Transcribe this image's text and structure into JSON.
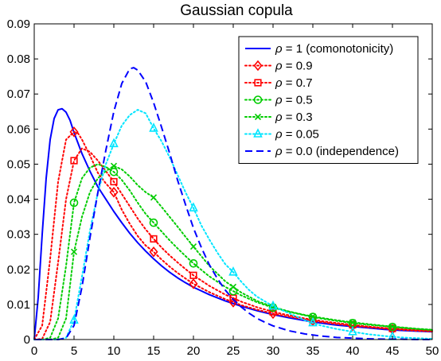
{
  "chart_data": {
    "type": "line",
    "title": "Gaussian copula",
    "xlabel": "",
    "ylabel": "",
    "xlim": [
      0,
      50
    ],
    "ylim": [
      0,
      0.09
    ],
    "xticks": [
      "0",
      "5",
      "10",
      "15",
      "20",
      "25",
      "30",
      "35",
      "40",
      "45",
      "50"
    ],
    "yticks": [
      "0",
      "0.01",
      "0.02",
      "0.03",
      "0.04",
      "0.05",
      "0.06",
      "0.07",
      "0.08",
      "0.09"
    ],
    "grid": false,
    "legend_position": "top-right",
    "series": [
      {
        "name": "= 1 (comonotonicity)",
        "rho_symbol": "ρ",
        "color": "#0000ff",
        "line_style": "solid",
        "marker": "none",
        "x": [
          0,
          0.5,
          1,
          1.5,
          2,
          2.5,
          3,
          3.5,
          4,
          4.5,
          5,
          6,
          7,
          8,
          9,
          10,
          11,
          12,
          13,
          14,
          15,
          16,
          17,
          18,
          19,
          20,
          22,
          24,
          26,
          28,
          30,
          32,
          34,
          36,
          38,
          40,
          42,
          44,
          46,
          48,
          50
        ],
        "y": [
          0,
          0.012,
          0.03,
          0.046,
          0.057,
          0.063,
          0.0655,
          0.0658,
          0.0648,
          0.0625,
          0.059,
          0.053,
          0.048,
          0.0435,
          0.04,
          0.0365,
          0.0333,
          0.0303,
          0.0276,
          0.0252,
          0.023,
          0.021,
          0.0192,
          0.0176,
          0.0162,
          0.0149,
          0.0128,
          0.011,
          0.0095,
          0.0082,
          0.0071,
          0.0062,
          0.0054,
          0.0047,
          0.0041,
          0.0037,
          0.0033,
          0.0029,
          0.0026,
          0.0024,
          0.0022
        ],
        "marker_x": []
      },
      {
        "name": "= 0.9",
        "rho_symbol": "ρ",
        "color": "#ff0000",
        "line_style": "dotted",
        "marker": "diamond",
        "x": [
          0,
          1,
          2,
          3,
          4,
          5,
          5.5,
          6,
          7,
          8,
          9,
          10,
          11,
          12,
          13,
          14,
          15,
          16,
          17,
          18,
          19,
          20,
          22,
          24,
          26,
          28,
          30,
          32,
          34,
          36,
          38,
          40,
          42,
          44,
          46,
          48,
          50
        ],
        "y": [
          0,
          0.004,
          0.023,
          0.045,
          0.057,
          0.0592,
          0.0588,
          0.057,
          0.0525,
          0.0475,
          0.0445,
          0.042,
          0.037,
          0.033,
          0.0295,
          0.0268,
          0.025,
          0.0228,
          0.0208,
          0.019,
          0.0174,
          0.0159,
          0.0135,
          0.0115,
          0.0098,
          0.0085,
          0.0074,
          0.0065,
          0.0057,
          0.005,
          0.0044,
          0.0039,
          0.0035,
          0.0031,
          0.0028,
          0.0025,
          0.0023
        ],
        "marker_x": [
          5,
          10,
          15,
          20,
          25,
          30,
          35,
          40,
          45
        ]
      },
      {
        "name": "= 0.7",
        "rho_symbol": "ρ",
        "color": "#ff0000",
        "line_style": "dotted",
        "marker": "square",
        "x": [
          0,
          1,
          2,
          3,
          4,
          5,
          6,
          7,
          8,
          9,
          10,
          11,
          12,
          13,
          14,
          15,
          16,
          17,
          18,
          19,
          20,
          22,
          24,
          26,
          28,
          30,
          32,
          34,
          36,
          38,
          40,
          42,
          44,
          46,
          48,
          50
        ],
        "y": [
          0,
          0.0002,
          0.005,
          0.022,
          0.04,
          0.051,
          0.0545,
          0.0535,
          0.051,
          0.048,
          0.045,
          0.0415,
          0.038,
          0.0345,
          0.0314,
          0.0287,
          0.0262,
          0.024,
          0.022,
          0.0201,
          0.0183,
          0.0153,
          0.0128,
          0.0108,
          0.0092,
          0.0079,
          0.0069,
          0.006,
          0.0053,
          0.0047,
          0.0042,
          0.0037,
          0.0033,
          0.003,
          0.0027,
          0.0024
        ],
        "marker_x": [
          5,
          10,
          15,
          20,
          25,
          30,
          35,
          40,
          45
        ]
      },
      {
        "name": "= 0.5",
        "rho_symbol": "ρ",
        "color": "#00cc00",
        "line_style": "dotted",
        "marker": "circle",
        "x": [
          0,
          1,
          2,
          3,
          4,
          5,
          6,
          7,
          8,
          9,
          10,
          11,
          12,
          13,
          14,
          15,
          16,
          17,
          18,
          19,
          20,
          22,
          24,
          26,
          28,
          30,
          32,
          34,
          36,
          38,
          40,
          42,
          44,
          46,
          48,
          50
        ],
        "y": [
          0,
          0,
          0.0005,
          0.006,
          0.021,
          0.039,
          0.046,
          0.049,
          0.05,
          0.0492,
          0.0478,
          0.0455,
          0.0425,
          0.039,
          0.0358,
          0.0333,
          0.0308,
          0.0283,
          0.026,
          0.0238,
          0.0217,
          0.018,
          0.015,
          0.0126,
          0.0106,
          0.0091,
          0.0079,
          0.0069,
          0.006,
          0.0053,
          0.0047,
          0.0042,
          0.0038,
          0.0034,
          0.003,
          0.0027
        ],
        "marker_x": [
          5,
          10,
          15,
          20,
          25,
          30,
          35,
          40,
          45
        ]
      },
      {
        "name": "= 0.3",
        "rho_symbol": "ρ",
        "color": "#00cc00",
        "line_style": "dotted",
        "marker": "cross",
        "x": [
          0,
          1,
          2,
          3,
          4,
          5,
          6,
          7,
          8,
          9,
          10,
          11,
          12,
          13,
          14,
          15,
          16,
          17,
          18,
          19,
          20,
          22,
          24,
          26,
          28,
          30,
          32,
          34,
          36,
          38,
          40,
          42,
          44,
          46,
          48,
          50
        ],
        "y": [
          0,
          0,
          0,
          0.0005,
          0.006,
          0.025,
          0.035,
          0.042,
          0.046,
          0.048,
          0.0495,
          0.0485,
          0.0465,
          0.044,
          0.042,
          0.0405,
          0.0378,
          0.035,
          0.0322,
          0.0293,
          0.0265,
          0.021,
          0.0166,
          0.0134,
          0.011,
          0.0093,
          0.008,
          0.007,
          0.0062,
          0.0055,
          0.0049,
          0.0044,
          0.0039,
          0.0035,
          0.0031,
          0.0028
        ],
        "marker_x": [
          5,
          10,
          15,
          20,
          25,
          30,
          35,
          40,
          45
        ]
      },
      {
        "name": "= 0.05",
        "rho_symbol": "ρ",
        "color": "#00e5ff",
        "line_style": "dotted",
        "marker": "triangle",
        "x": [
          0,
          1,
          2,
          3,
          4,
          5,
          6,
          7,
          8,
          9,
          10,
          11,
          12,
          13,
          14,
          15,
          16,
          17,
          18,
          19,
          20,
          21,
          22,
          23,
          24,
          25,
          26,
          27,
          28,
          30,
          32,
          34,
          36,
          38,
          40,
          42,
          44,
          46,
          48,
          50
        ],
        "y": [
          0,
          0,
          0,
          0,
          0.0005,
          0.0055,
          0.018,
          0.031,
          0.042,
          0.05,
          0.0558,
          0.061,
          0.064,
          0.0655,
          0.0645,
          0.0602,
          0.0565,
          0.052,
          0.047,
          0.042,
          0.0375,
          0.0325,
          0.0285,
          0.0248,
          0.0215,
          0.0192,
          0.0165,
          0.0141,
          0.0122,
          0.0095,
          0.0075,
          0.0055,
          0.004,
          0.003,
          0.0022,
          0.0015,
          0.001,
          0.0006,
          0.0004,
          0.0002
        ],
        "marker_x": [
          5,
          10,
          15,
          20,
          25,
          30,
          35,
          40,
          45
        ]
      },
      {
        "name": "= 0.0 (independence)",
        "rho_symbol": "ρ",
        "color": "#0000ff",
        "line_style": "dashed",
        "marker": "none",
        "x": [
          0,
          1,
          2,
          3,
          4,
          5,
          6,
          7,
          8,
          9,
          10,
          11,
          12,
          12.5,
          13,
          14,
          15,
          16,
          17,
          18,
          19,
          20,
          21,
          22,
          23,
          24,
          25,
          26,
          27,
          28,
          29,
          30,
          32,
          34,
          36,
          38,
          40,
          42,
          44,
          46,
          48,
          50
        ],
        "y": [
          0,
          0,
          0,
          0,
          0.0004,
          0.004,
          0.015,
          0.029,
          0.042,
          0.054,
          0.065,
          0.073,
          0.0772,
          0.0775,
          0.0768,
          0.0735,
          0.0675,
          0.0605,
          0.0532,
          0.0455,
          0.0385,
          0.0318,
          0.0262,
          0.0213,
          0.0174,
          0.0141,
          0.0114,
          0.0093,
          0.0075,
          0.006,
          0.0049,
          0.0039,
          0.0025,
          0.0016,
          0.001,
          0.0006,
          0.0004,
          0.0002,
          0.0001,
          0.0001,
          0,
          0
        ],
        "marker_x": []
      }
    ]
  }
}
